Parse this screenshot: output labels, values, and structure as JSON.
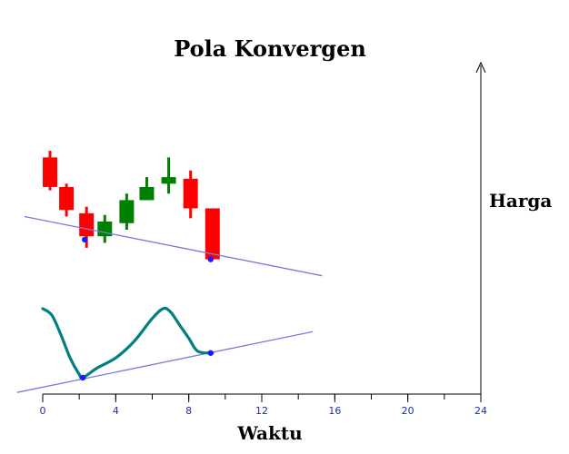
{
  "chart_data": {
    "type": "candlestick",
    "title": "Pola Konvergen",
    "xlabel": "Waktu",
    "ylabel": "Harga",
    "xlim": [
      0,
      24
    ],
    "ylim": [
      0,
      100
    ],
    "x_ticks": [
      0,
      4,
      8,
      12,
      16,
      20,
      24
    ],
    "x_minor_step": 2,
    "grid": false,
    "colors": {
      "up": "#008000",
      "down": "#ff0000",
      "trendline": "#7b7bdd",
      "indicator": "#008080",
      "marker": "#1a1aff",
      "tick_label": "#1f2fa8",
      "axis": "#000000"
    },
    "candles": [
      {
        "x": 0.4,
        "open": 72,
        "high": 74,
        "low": 62,
        "close": 63
      },
      {
        "x": 1.3,
        "open": 63,
        "high": 64,
        "low": 54,
        "close": 56
      },
      {
        "x": 2.4,
        "open": 55,
        "high": 57,
        "low": 44.5,
        "close": 48
      },
      {
        "x": 3.4,
        "open": 48,
        "high": 54.5,
        "low": 46,
        "close": 52.5
      },
      {
        "x": 4.6,
        "open": 52,
        "high": 61,
        "low": 50,
        "close": 59
      },
      {
        "x": 5.7,
        "open": 59,
        "high": 66,
        "low": 59,
        "close": 63
      },
      {
        "x": 6.9,
        "open": 64,
        "high": 72,
        "low": 61,
        "close": 66
      },
      {
        "x": 8.1,
        "open": 65.5,
        "high": 68,
        "low": 53.5,
        "close": 56.5
      },
      {
        "x": 9.3,
        "open": 56.5,
        "high": 56.5,
        "low": 41,
        "close": 41
      }
    ],
    "indicator": {
      "x": [
        0,
        0.5,
        1,
        1.5,
        2,
        2.2,
        3,
        4,
        5,
        6,
        6.6,
        7,
        7.5,
        8,
        8.5,
        9.3
      ],
      "y": [
        26,
        24,
        18,
        11,
        6,
        5,
        8,
        11,
        16,
        23,
        26,
        25,
        21,
        17,
        13,
        12.5
      ]
    },
    "trendlines": [
      {
        "name": "",
        "from": [
          -1,
          54
        ],
        "to": [
          15.3,
          36
        ]
      },
      {
        "name": "",
        "from": [
          -1.4,
          0.5
        ],
        "to": [
          14.8,
          19
        ]
      }
    ],
    "markers": [
      {
        "x": 2.3,
        "y": 47
      },
      {
        "x": 9.2,
        "y": 41
      },
      {
        "x": 2.2,
        "y": 5
      },
      {
        "x": 9.2,
        "y": 12.5
      }
    ]
  }
}
